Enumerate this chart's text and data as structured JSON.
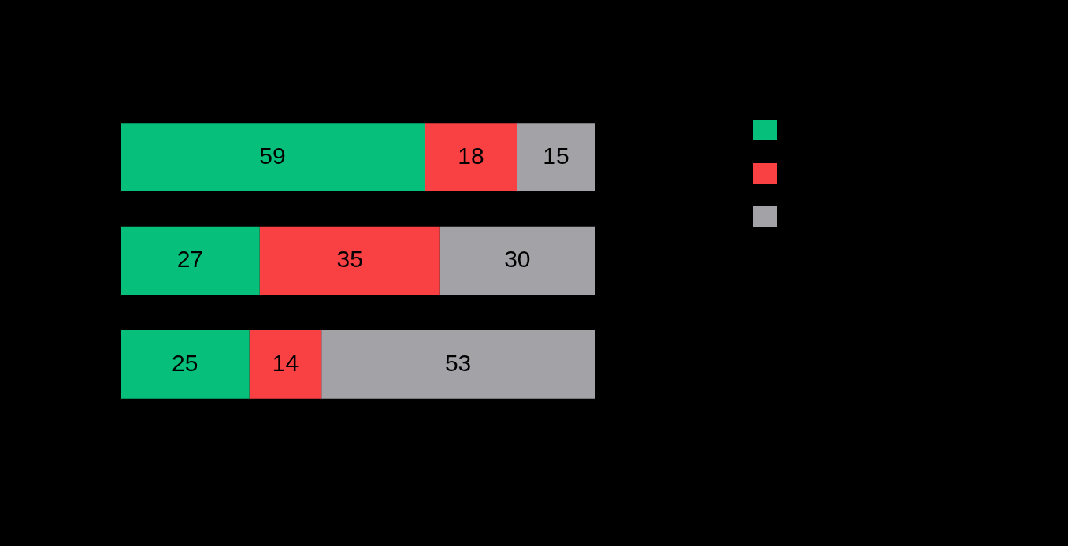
{
  "chart_data": {
    "type": "bar",
    "orientation": "horizontal",
    "stacked": true,
    "data_labels": true,
    "categories": [
      null,
      null,
      null
    ],
    "series": [
      {
        "color": "#06bf7a",
        "values": [
          59,
          27,
          25
        ]
      },
      {
        "color": "#f94144",
        "values": [
          18,
          35,
          14
        ]
      },
      {
        "color": "#a3a2a6",
        "values": [
          15,
          30,
          53
        ]
      }
    ]
  }
}
